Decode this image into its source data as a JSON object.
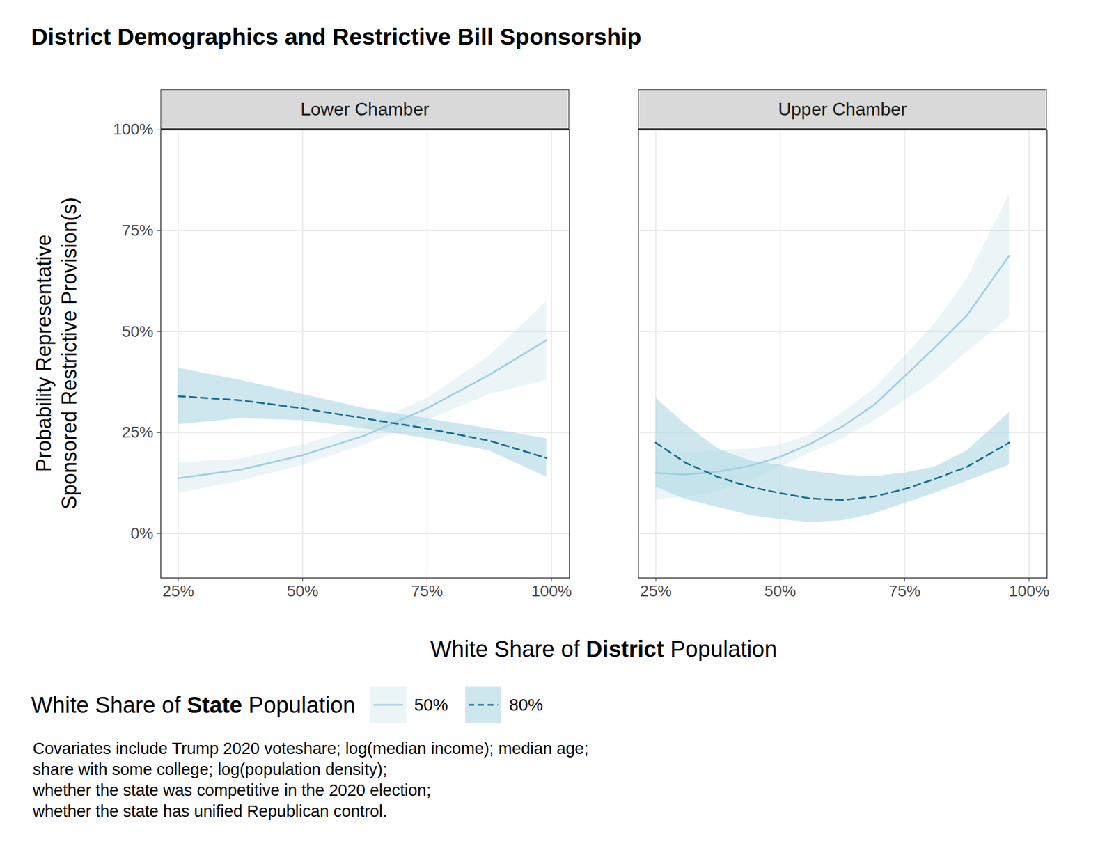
{
  "chart_data": {
    "type": "line",
    "title": "District Demographics and Restrictive Bill Sponsorship",
    "x_label": [
      "White Share of ",
      "District",
      " Population"
    ],
    "y_label": "Probability Representative\nSponsored Restrictive Provision(s)",
    "legend_title": [
      "White Share of ",
      "State",
      " Population"
    ],
    "legend": "bottom",
    "grid": true,
    "caption": [
      "Covariates include Trump 2020 voteshare; log(median income); median age;",
      "share with some college; log(population density);",
      "whether the state was competitive in the 2020 election;",
      "whether the state has unified Republican control."
    ],
    "xlim": [
      21.5,
      103.6
    ],
    "ylim": [
      -11,
      100
    ],
    "xticks": [
      {
        "value": 25,
        "label": "25%"
      },
      {
        "value": 50,
        "label": "50%"
      },
      {
        "value": 75,
        "label": "75%"
      },
      {
        "value": 100,
        "label": "100%"
      }
    ],
    "yticks": [
      {
        "value": 0,
        "label": "0%"
      },
      {
        "value": 25,
        "label": "25%"
      },
      {
        "value": 50,
        "label": "50%"
      },
      {
        "value": 75,
        "label": "75%"
      },
      {
        "value": 100,
        "label": "100%"
      }
    ],
    "panels": [
      {
        "title": "Lower Chamber",
        "series": [
          {
            "name": "50%",
            "color": "#9ecfe0",
            "line_style": "solid",
            "x": [
              25,
              37.5,
              50,
              62.5,
              75,
              87.5,
              99
            ],
            "values": [
              13.7,
              15.8,
              19.4,
              24.3,
              31,
              39.3,
              47.9
            ],
            "lower": [
              10,
              13,
              17,
              22,
              28,
              34.5,
              38
            ],
            "upper": [
              17.5,
              18.5,
              22,
              26.5,
              33.5,
              44,
              57.5
            ]
          },
          {
            "name": "80%",
            "color": "#1a6e8e",
            "line_style": "dashed",
            "x": [
              25,
              37.5,
              50,
              62.5,
              75,
              87.5,
              99
            ],
            "values": [
              34,
              33,
              31,
              28.5,
              26,
              23,
              18.7
            ],
            "lower": [
              27,
              28.5,
              28,
              26,
              23.5,
              20.5,
              14
            ],
            "upper": [
              41,
              38,
              34.5,
              31,
              28.5,
              26,
              23.5
            ]
          }
        ]
      },
      {
        "title": "Upper Chamber",
        "series": [
          {
            "name": "50%",
            "color": "#9ecfe0",
            "line_style": "solid",
            "x": [
              25,
              31,
              37.5,
              44,
              50,
              56,
              62.5,
              69,
              75,
              81,
              87.5,
              96
            ],
            "values": [
              15,
              14.6,
              15.3,
              16.8,
              19,
              22.2,
              26.5,
              32,
              39,
              46,
              54,
              68.8
            ],
            "lower": [
              8.5,
              9,
              10.5,
              13,
              16.5,
              20,
              23.5,
              28,
              33,
              38,
              45,
              53.5
            ],
            "upper": [
              21,
              20,
              20.5,
              21,
              22,
              24.5,
              30,
              36,
              44,
              52,
              63,
              84
            ]
          },
          {
            "name": "80%",
            "color": "#1a6e8e",
            "line_style": "dashed",
            "x": [
              25,
              31,
              37.5,
              44,
              50,
              56,
              62.5,
              69,
              75,
              81,
              87.5,
              96
            ],
            "values": [
              22.5,
              17.5,
              14,
              11.5,
              10,
              8.7,
              8.3,
              9.2,
              11,
              13.5,
              16.5,
              22.5
            ],
            "lower": [
              11.5,
              8.5,
              6.5,
              4.5,
              3.5,
              2.8,
              3.2,
              5,
              7.5,
              10,
              13,
              17
            ],
            "upper": [
              33.5,
              27,
              21,
              18,
              17,
              15.5,
              14.5,
              14.2,
              15,
              16.5,
              20.5,
              30
            ]
          }
        ]
      }
    ]
  }
}
